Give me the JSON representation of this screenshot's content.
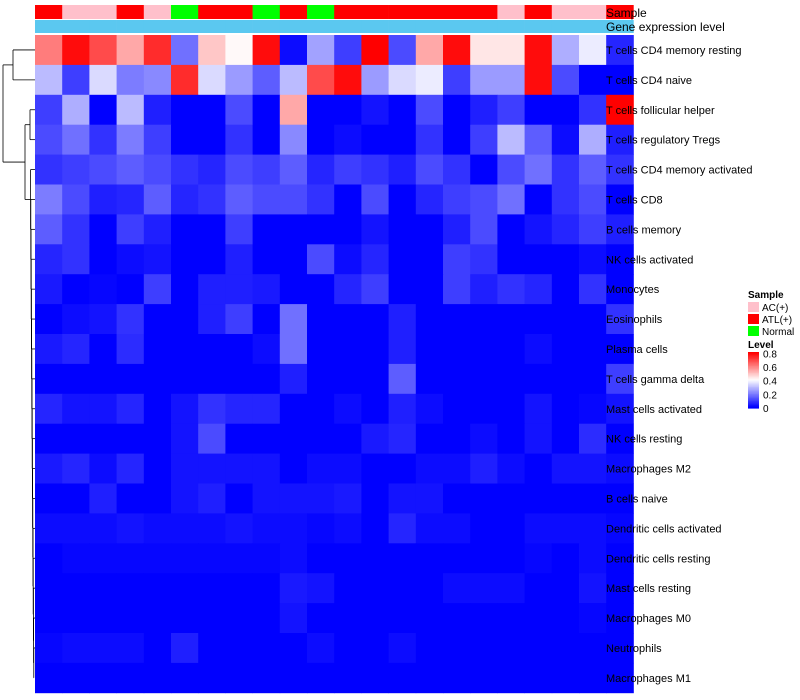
{
  "chart_data": {
    "type": "heatmap",
    "title": "",
    "row_annotation_labels": [
      "Sample",
      "Gene expression level"
    ],
    "rows": [
      "T cells CD4 memory resting",
      "T cells CD4 naive",
      "T cells follicular helper",
      "T cells regulatory  Tregs",
      "T cells CD4 memory activated",
      "T cells CD8",
      "B cells memory",
      "NK cells activated",
      "Monocytes",
      "Eosinophils",
      "Plasma cells",
      "T cells gamma delta",
      "Mast cells activated",
      "NK cells resting",
      "Macrophages M2",
      "B cells naive",
      "Dendritic cells activated",
      "Dendritic cells resting",
      "Mast cells resting",
      "Macrophages M0",
      "Neutrophils",
      "Macrophages M1"
    ],
    "sample_groups": [
      "ATL(+)",
      "AC(+)",
      "AC(+)",
      "ATL(+)",
      "AC(+)",
      "Normal",
      "ATL(+)",
      "ATL(+)",
      "Normal",
      "ATL(+)",
      "Normal",
      "ATL(+)",
      "ATL(+)",
      "ATL(+)",
      "ATL(+)",
      "ATL(+)",
      "ATL(+)",
      "AC(+)",
      "ATL(+)",
      "AC(+)",
      "AC(+)",
      "ATL(+)"
    ],
    "values": [
      [
        0.62,
        0.8,
        0.7,
        0.55,
        0.75,
        0.18,
        0.5,
        0.42,
        0.8,
        0.02,
        0.26,
        0.1,
        0.82,
        0.12,
        0.55,
        0.8,
        0.45,
        0.45,
        0.8,
        0.28,
        0.38,
        0.06
      ],
      [
        0.3,
        0.1,
        0.35,
        0.2,
        0.22,
        0.75,
        0.35,
        0.25,
        0.15,
        0.3,
        0.7,
        0.8,
        0.25,
        0.35,
        0.38,
        0.1,
        0.25,
        0.25,
        0.8,
        0.12,
        0.0,
        0.0
      ],
      [
        0.1,
        0.28,
        0.0,
        0.3,
        0.05,
        0.0,
        0.0,
        0.12,
        0.0,
        0.55,
        0.0,
        0.0,
        0.03,
        0.0,
        0.12,
        0.0,
        0.05,
        0.1,
        0.0,
        0.0,
        0.08,
        0.82
      ],
      [
        0.12,
        0.18,
        0.08,
        0.2,
        0.1,
        0.0,
        0.0,
        0.08,
        0.0,
        0.22,
        0.0,
        0.02,
        0.0,
        0.0,
        0.08,
        0.0,
        0.1,
        0.3,
        0.15,
        0.02,
        0.28,
        0.05
      ],
      [
        0.08,
        0.1,
        0.12,
        0.15,
        0.12,
        0.08,
        0.06,
        0.12,
        0.1,
        0.15,
        0.06,
        0.1,
        0.08,
        0.05,
        0.12,
        0.08,
        0.0,
        0.12,
        0.18,
        0.08,
        0.15,
        0.08
      ],
      [
        0.2,
        0.12,
        0.05,
        0.06,
        0.15,
        0.06,
        0.08,
        0.15,
        0.12,
        0.12,
        0.08,
        0.0,
        0.12,
        0.0,
        0.06,
        0.1,
        0.12,
        0.18,
        0.0,
        0.08,
        0.12,
        0.0
      ],
      [
        0.15,
        0.08,
        0.0,
        0.1,
        0.05,
        0.0,
        0.0,
        0.1,
        0.0,
        0.0,
        0.0,
        0.0,
        0.03,
        0.0,
        0.0,
        0.05,
        0.12,
        0.0,
        0.03,
        0.06,
        0.1,
        0.05
      ],
      [
        0.06,
        0.08,
        0.0,
        0.02,
        0.03,
        0.0,
        0.0,
        0.05,
        0.0,
        0.0,
        0.12,
        0.02,
        0.06,
        0.0,
        0.0,
        0.1,
        0.08,
        0.0,
        0.0,
        0.0,
        0.02,
        0.0
      ],
      [
        0.04,
        0.0,
        0.01,
        0.0,
        0.1,
        0.0,
        0.05,
        0.05,
        0.04,
        0.0,
        0.0,
        0.06,
        0.1,
        0.0,
        0.0,
        0.1,
        0.05,
        0.08,
        0.06,
        0.0,
        0.08,
        0.0
      ],
      [
        0.0,
        0.02,
        0.03,
        0.08,
        0.0,
        0.0,
        0.05,
        0.1,
        0.0,
        0.18,
        0.0,
        0.0,
        0.0,
        0.05,
        0.0,
        0.0,
        0.0,
        0.0,
        0.0,
        0.0,
        0.0,
        0.08
      ],
      [
        0.04,
        0.06,
        0.0,
        0.07,
        0.0,
        0.0,
        0.0,
        0.0,
        0.02,
        0.18,
        0.0,
        0.0,
        0.0,
        0.05,
        0.0,
        0.0,
        0.0,
        0.0,
        0.02,
        0.0,
        0.0,
        0.0
      ],
      [
        0.0,
        0.0,
        0.0,
        0.0,
        0.0,
        0.0,
        0.0,
        0.0,
        0.0,
        0.05,
        0.0,
        0.0,
        0.0,
        0.15,
        0.0,
        0.0,
        0.0,
        0.0,
        0.0,
        0.0,
        0.0,
        0.1
      ],
      [
        0.06,
        0.03,
        0.03,
        0.06,
        0.0,
        0.03,
        0.08,
        0.06,
        0.06,
        0.0,
        0.0,
        0.02,
        0.0,
        0.05,
        0.02,
        0.0,
        0.0,
        0.0,
        0.03,
        0.0,
        0.01,
        0.03
      ],
      [
        0.0,
        0.0,
        0.0,
        0.0,
        0.0,
        0.03,
        0.12,
        0.0,
        0.0,
        0.0,
        0.0,
        0.0,
        0.04,
        0.06,
        0.0,
        0.0,
        0.02,
        0.0,
        0.03,
        0.0,
        0.07,
        0.0
      ],
      [
        0.04,
        0.06,
        0.02,
        0.06,
        0.0,
        0.03,
        0.03,
        0.03,
        0.03,
        0.0,
        0.02,
        0.02,
        0.0,
        0.0,
        0.02,
        0.02,
        0.05,
        0.02,
        0.0,
        0.03,
        0.03,
        0.02
      ],
      [
        0.0,
        0.0,
        0.05,
        0.0,
        0.0,
        0.03,
        0.05,
        0.0,
        0.03,
        0.03,
        0.03,
        0.04,
        0.0,
        0.03,
        0.03,
        0.0,
        0.0,
        0.0,
        0.0,
        0.0,
        0.0,
        0.0
      ],
      [
        0.02,
        0.02,
        0.02,
        0.03,
        0.02,
        0.02,
        0.02,
        0.03,
        0.02,
        0.02,
        0.01,
        0.02,
        0.0,
        0.06,
        0.02,
        0.02,
        0.0,
        0.0,
        0.02,
        0.02,
        0.02,
        0.01
      ],
      [
        0.0,
        0.01,
        0.01,
        0.01,
        0.01,
        0.01,
        0.01,
        0.01,
        0.01,
        0.02,
        0.0,
        0.0,
        0.0,
        0.0,
        0.0,
        0.0,
        0.0,
        0.0,
        0.01,
        0.0,
        0.02,
        0.0
      ],
      [
        0.0,
        0.0,
        0.0,
        0.0,
        0.0,
        0.0,
        0.0,
        0.0,
        0.0,
        0.04,
        0.03,
        0.0,
        0.0,
        0.0,
        0.0,
        0.02,
        0.02,
        0.02,
        0.0,
        0.0,
        0.03,
        0.0
      ],
      [
        0.0,
        0.0,
        0.0,
        0.0,
        0.0,
        0.0,
        0.0,
        0.0,
        0.0,
        0.03,
        0.0,
        0.0,
        0.0,
        0.0,
        0.0,
        0.0,
        0.0,
        0.0,
        0.0,
        0.0,
        0.01,
        0.0
      ],
      [
        0.01,
        0.02,
        0.02,
        0.02,
        0.0,
        0.05,
        0.0,
        0.0,
        0.0,
        0.0,
        0.02,
        0.0,
        0.0,
        0.02,
        0.0,
        0.0,
        0.0,
        0.0,
        0.0,
        0.0,
        0.0,
        0.0
      ],
      [
        0.0,
        0.0,
        0.0,
        0.0,
        0.0,
        0.0,
        0.0,
        0.0,
        0.0,
        0.0,
        0.0,
        0.0,
        0.0,
        0.0,
        0.0,
        0.0,
        0.0,
        0.0,
        0.0,
        0.0,
        0.0,
        0.0
      ]
    ],
    "expression_level_annotation": "constant across samples",
    "legend_sample": {
      "title": "Sample",
      "entries": [
        {
          "label": "AC(+)",
          "color": "#ffc0cb"
        },
        {
          "label": "ATL(+)",
          "color": "#ff0000"
        },
        {
          "label": "Normal",
          "color": "#00ff00"
        }
      ]
    },
    "legend_level": {
      "title": "Level",
      "ticks": [
        "0.8",
        "0.6",
        "0.4",
        "0.2",
        "0"
      ],
      "tick_values": [
        0.8,
        0.6,
        0.4,
        0.2,
        0
      ],
      "range": [
        0,
        0.82
      ]
    },
    "colors": {
      "low": "#0000ff",
      "mid": "#ffffff",
      "high": "#ff0000",
      "expression_annotation": "#5bc8f0",
      "dendrogram": "#000000"
    },
    "dendrogram": "row clustering tree on the left"
  }
}
